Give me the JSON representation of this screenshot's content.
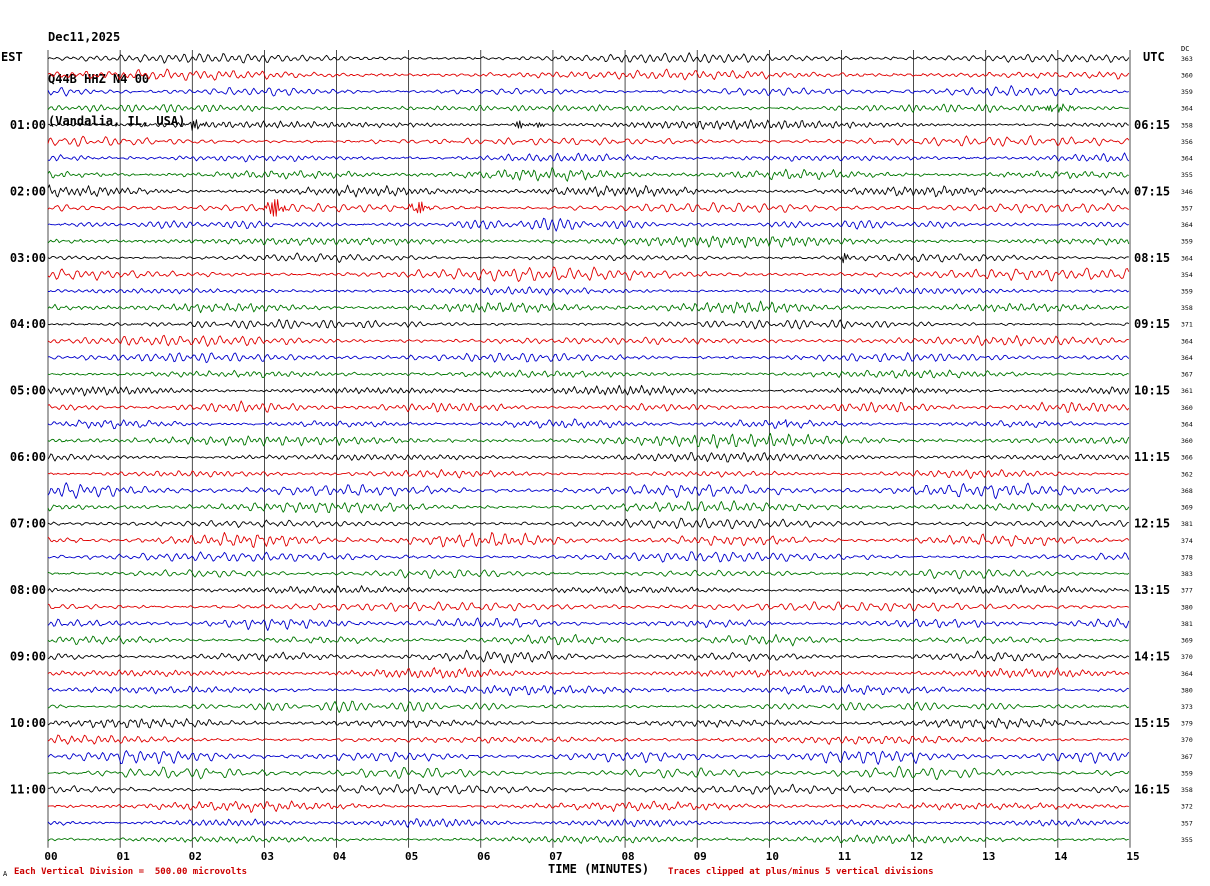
{
  "header": {
    "date": "Dec11,2025",
    "station": "Q44B HHZ N4 00",
    "location": "(Vandalia, IL, USA)",
    "left_tz": "EST",
    "right_tz": "UTC",
    "dc_label": "DC"
  },
  "footer": {
    "scale_note": "Each Vertical Division =  500.00 microvolts",
    "xlabel": "TIME (MINUTES)",
    "clip_note": "Traces clipped at plus/minus 5 vertical divisions",
    "corner_mark": "A"
  },
  "chart_data": {
    "type": "line",
    "title": "Q44B HHZ N4 00 (Vandalia, IL, USA) Dec11,2025",
    "xlabel": "TIME (MINUTES)",
    "x_range": [
      0,
      15
    ],
    "minutes_per_line": 15,
    "rows": 48,
    "traces_per_hour": 4,
    "grid": true,
    "trace_colors": [
      "#000000",
      "#e00000",
      "#0000cc",
      "#007700"
    ],
    "minute_tick_labels": [
      "00",
      "01",
      "02",
      "03",
      "04",
      "05",
      "06",
      "07",
      "08",
      "09",
      "10",
      "11",
      "12",
      "13",
      "14",
      "15"
    ],
    "left_hour_labels": [
      "01:00",
      "02:00",
      "03:00",
      "04:00",
      "05:00",
      "06:00",
      "07:00",
      "08:00",
      "09:00",
      "10:00",
      "11:00"
    ],
    "right_hour_labels": [
      "06:15",
      "07:15",
      "08:15",
      "09:15",
      "10:15",
      "11:15",
      "12:15",
      "13:15",
      "14:15",
      "15:15",
      "16:15"
    ],
    "dc_values": [
      363,
      360,
      359,
      364,
      358,
      356,
      364,
      355,
      346,
      357,
      364,
      359,
      364,
      354,
      359,
      358,
      371,
      364,
      364,
      367,
      361,
      360,
      364,
      360,
      366,
      362,
      368,
      369,
      381,
      374,
      378,
      383,
      377,
      380,
      381,
      369,
      370,
      364,
      380,
      373,
      379,
      370,
      367,
      359,
      358,
      372,
      357,
      355
    ],
    "events": [
      {
        "row": 3,
        "minute": 14.0,
        "amp": 3.2,
        "width": 0.18
      },
      {
        "row": 4,
        "minute": 2.05,
        "amp": 5.0,
        "width": 0.08
      },
      {
        "row": 4,
        "minute": 6.55,
        "amp": 4.2,
        "width": 0.06
      },
      {
        "row": 4,
        "minute": 6.78,
        "amp": 3.6,
        "width": 0.05
      },
      {
        "row": 9,
        "minute": 3.15,
        "amp": 15.0,
        "width": 0.07
      },
      {
        "row": 9,
        "minute": 5.15,
        "amp": 5.5,
        "width": 0.09
      },
      {
        "row": 12,
        "minute": 11.05,
        "amp": 4.5,
        "width": 0.05
      },
      {
        "row": 22,
        "minute": 10.2,
        "amp": 3.5,
        "width": 0.04
      }
    ]
  }
}
